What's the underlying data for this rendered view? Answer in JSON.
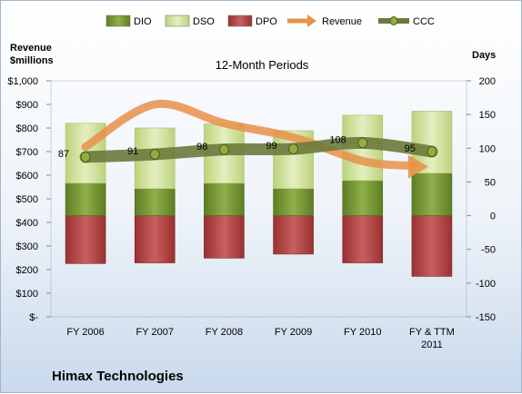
{
  "company_label": "Himax Technologies",
  "chart_data": {
    "type": "bar",
    "title": "12-Month Periods",
    "left_axis_label_lines": [
      "Revenue",
      "$millions"
    ],
    "right_axis_label": "Days",
    "categories": [
      [
        "FY 2006"
      ],
      [
        "FY 2007"
      ],
      [
        "FY 2008"
      ],
      [
        "FY 2009"
      ],
      [
        "FY 2010"
      ],
      [
        "FY & TTM",
        "2011"
      ]
    ],
    "left_axis": {
      "min": 0,
      "max": 1000,
      "step": 100,
      "tick_labels": [
        "$-",
        "$100",
        "$200",
        "$300",
        "$400",
        "$500",
        "$600",
        "$700",
        "$800",
        "$900",
        "$1,000"
      ]
    },
    "right_axis": {
      "min": -150,
      "max": 200,
      "step": 50,
      "tick_labels": [
        "-150",
        "-100",
        "-50",
        "0",
        "50",
        "100",
        "150",
        "200"
      ]
    },
    "series": [
      {
        "name": "DIO",
        "kind": "bar-stack-positive",
        "axis": "right",
        "color": "#7a9b35",
        "values": [
          48,
          40,
          48,
          40,
          52,
          63
        ]
      },
      {
        "name": "DSO",
        "kind": "bar-stack-positive",
        "axis": "right",
        "color": "#d4e4a3",
        "values": [
          89,
          90,
          88,
          86,
          97,
          92
        ]
      },
      {
        "name": "DPO",
        "kind": "bar-negative",
        "axis": "right",
        "color": "#b84a4a",
        "values": [
          -71,
          -70,
          -63,
          -57,
          -70,
          -90
        ]
      },
      {
        "name": "Revenue",
        "kind": "line-arrow",
        "axis": "left",
        "color": "#e8914a",
        "values": [
          720,
          900,
          820,
          760,
          660,
          640
        ]
      },
      {
        "name": "CCC",
        "kind": "line-markers",
        "axis": "right",
        "color": "#6b7a3c",
        "values": [
          87,
          91,
          98,
          99,
          108,
          95
        ]
      }
    ],
    "data_labels": [
      "87",
      "91",
      "98",
      "99",
      "108",
      "95"
    ],
    "legend_position": "top",
    "grid": false
  }
}
